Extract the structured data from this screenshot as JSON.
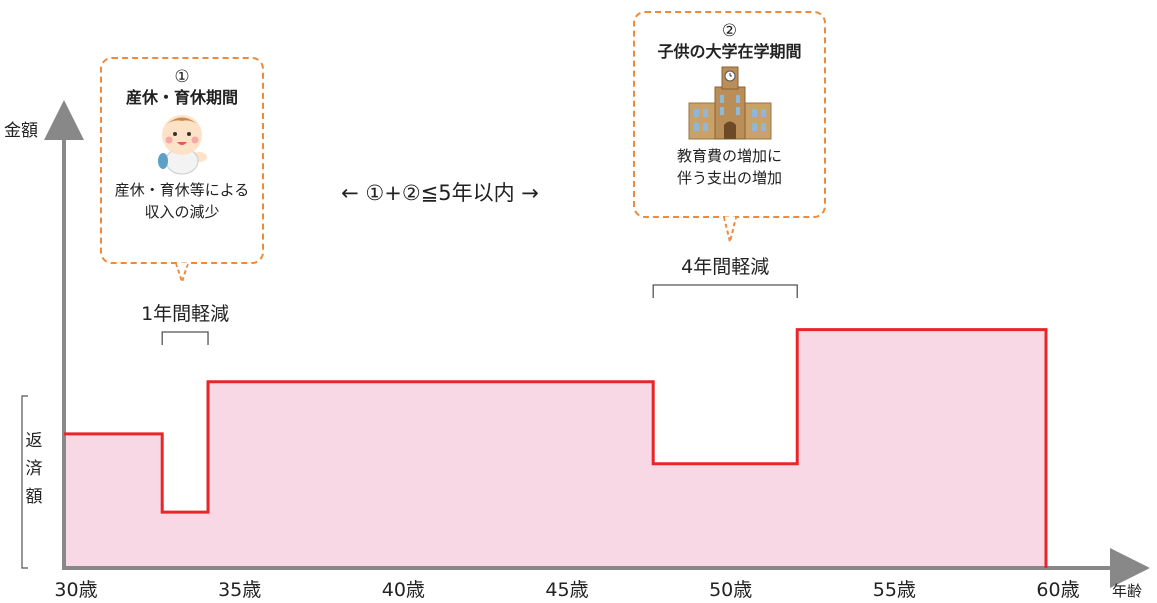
{
  "chart_data": {
    "type": "area",
    "title": "",
    "ylabel": "金額",
    "xlabel": "年齢",
    "repayment_label": "返済額",
    "x_ticks": [
      "30歳",
      "35歳",
      "40歳",
      "45歳",
      "50歳",
      "55歳",
      "60歳"
    ],
    "xlim": [
      30,
      60
    ],
    "series": [
      {
        "name": "",
        "steps": [
          {
            "from": 30,
            "to": 33,
            "level": 3.6
          },
          {
            "from": 33,
            "to": 34.4,
            "level": 1.5
          },
          {
            "from": 34.4,
            "to": 48,
            "level": 5.0
          },
          {
            "from": 48,
            "to": 52.4,
            "level": 2.8
          },
          {
            "from": 52.4,
            "to": 60,
            "level": 6.4
          }
        ]
      }
    ],
    "brackets": [
      {
        "from": 33,
        "to": 34.4,
        "label": "1年間軽減"
      },
      {
        "from": 48,
        "to": 52.4,
        "label": "4年間軽減"
      }
    ],
    "center_note": "←  ①+②≦5年以内  →"
  },
  "callouts": [
    {
      "number": "①",
      "title": "産休・育休期間",
      "icon": "baby-icon",
      "desc_lines": [
        "産休・育休等による",
        "収入の減少"
      ]
    },
    {
      "number": "②",
      "title": "子供の大学在学期間",
      "icon": "university-building-icon",
      "desc_lines": [
        "教育費の増加に",
        "伴う支出の増加"
      ]
    }
  ],
  "colors": {
    "line": "#e8262a",
    "fill": "#f8d8e4",
    "axis": "#888888",
    "callout_border": "#ef8a3a"
  }
}
